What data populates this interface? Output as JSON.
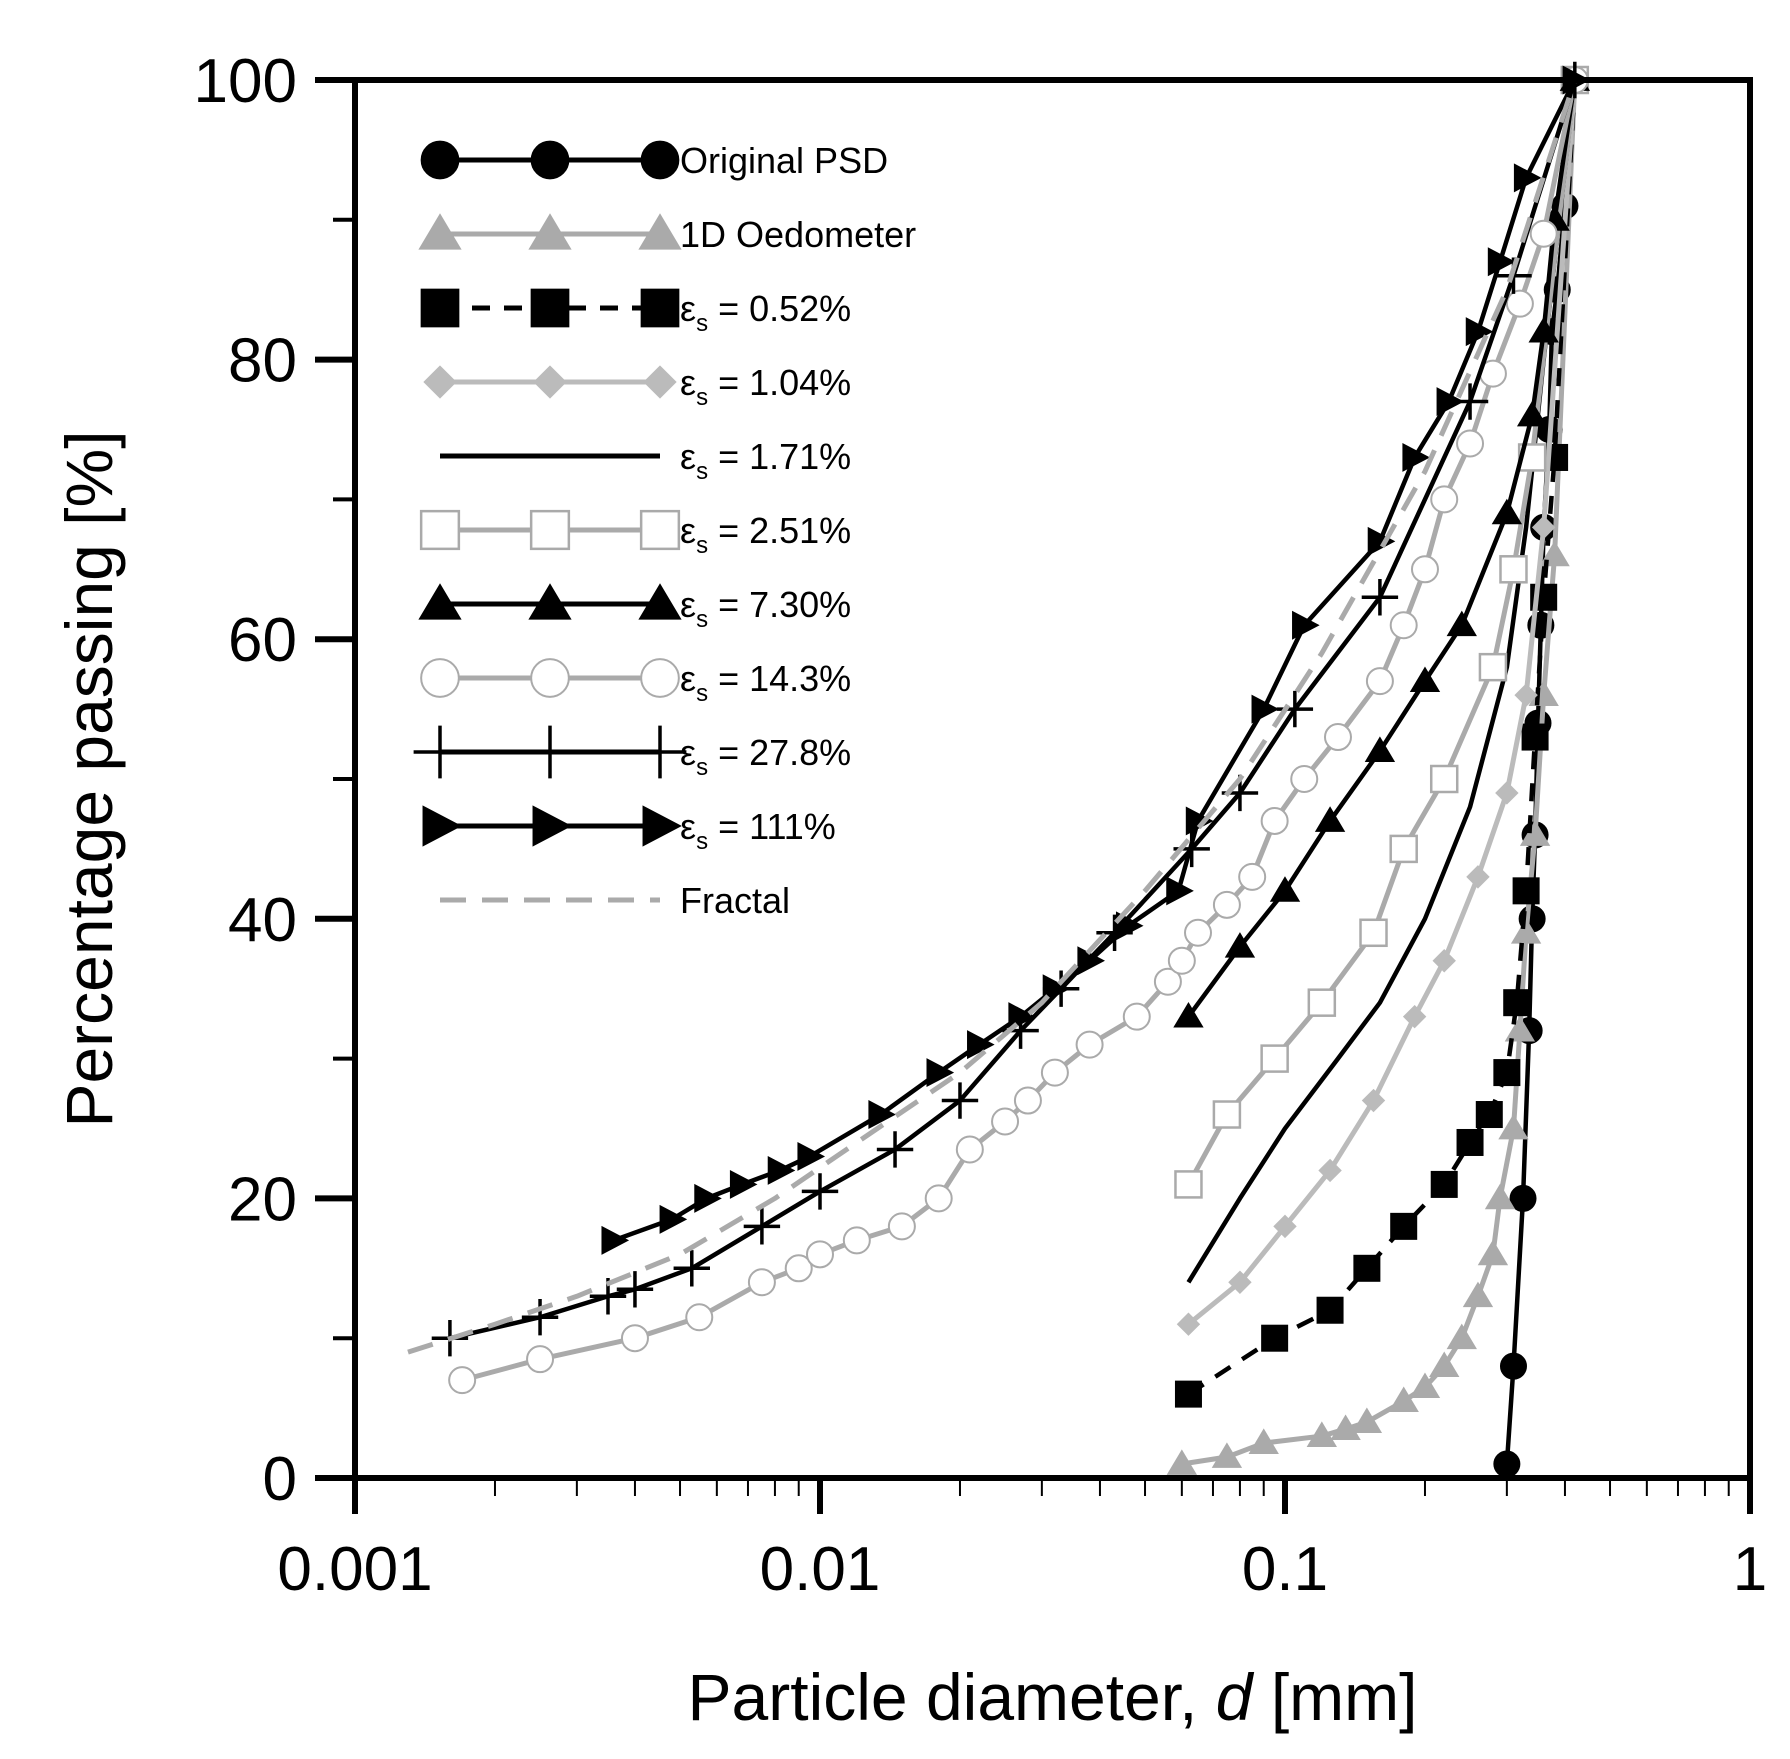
{
  "chart_data": {
    "type": "line",
    "title": "",
    "xlabel": "Particle diameter, ",
    "xlabel_italic": "d",
    "xlabel_suffix": " [mm]",
    "ylabel": "Percentage passing [%]",
    "xscale": "log",
    "xlim": [
      0.001,
      1
    ],
    "ylim": [
      0,
      100
    ],
    "x_ticks": [
      0.001,
      0.01,
      0.1,
      1
    ],
    "x_tick_labels": [
      "0.001",
      "0.01",
      "0.1",
      "1"
    ],
    "y_ticks": [
      0,
      20,
      40,
      60,
      80,
      100
    ],
    "y_tick_labels": [
      "0",
      "20",
      "40",
      "60",
      "80",
      "100"
    ],
    "legend_position": "top-left",
    "series": [
      {
        "name": "Original PSD",
        "legend_label": "Original PSD",
        "strain": "",
        "color": "#000000",
        "marker": "circle",
        "fill": "filled",
        "dash": "solid",
        "x": [
          0.3,
          0.31,
          0.325,
          0.335,
          0.34,
          0.345,
          0.35,
          0.355,
          0.36,
          0.37,
          0.375,
          0.385,
          0.4,
          0.42
        ],
        "y": [
          1,
          8,
          20,
          32,
          40,
          46,
          54,
          61,
          68,
          75,
          82,
          85,
          91,
          100
        ]
      },
      {
        "name": "1D Oedometer",
        "legend_label": "1D Oedometer",
        "strain": "",
        "color": "#aaaaaa",
        "marker": "triangle",
        "fill": "filled",
        "dash": "solid",
        "x": [
          0.06,
          0.075,
          0.09,
          0.12,
          0.135,
          0.15,
          0.18,
          0.2,
          0.22,
          0.24,
          0.26,
          0.28,
          0.29,
          0.31,
          0.32,
          0.33,
          0.345,
          0.36,
          0.38,
          0.42
        ],
        "y": [
          1,
          1.5,
          2.5,
          3,
          3.5,
          4,
          5.5,
          6.5,
          8,
          10,
          13,
          16,
          20,
          25,
          32,
          39,
          46,
          56,
          66,
          100
        ]
      },
      {
        "name": "εs = 0.52%",
        "legend_label": "",
        "strain": "0.52%",
        "color": "#000000",
        "marker": "square",
        "fill": "filled",
        "dash": "dash",
        "x": [
          0.062,
          0.095,
          0.125,
          0.15,
          0.18,
          0.22,
          0.25,
          0.275,
          0.3,
          0.315,
          0.33,
          0.345,
          0.36,
          0.38,
          0.42
        ],
        "y": [
          6,
          10,
          12,
          15,
          18,
          21,
          24,
          26,
          29,
          34,
          42,
          53,
          63,
          73,
          100
        ]
      },
      {
        "name": "εs = 1.04%",
        "legend_label": "",
        "strain": "1.04%",
        "color": "#bbbbbb",
        "marker": "diamond",
        "fill": "filled",
        "dash": "solid",
        "x": [
          0.062,
          0.08,
          0.1,
          0.125,
          0.155,
          0.19,
          0.22,
          0.26,
          0.3,
          0.33,
          0.36,
          0.42
        ],
        "y": [
          11,
          14,
          18,
          22,
          27,
          33,
          37,
          43,
          49,
          56,
          68,
          100
        ]
      },
      {
        "name": "εs = 1.71%",
        "legend_label": "",
        "strain": "1.71%",
        "color": "#000000",
        "marker": "none",
        "fill": "none",
        "dash": "solid",
        "x": [
          0.062,
          0.08,
          0.1,
          0.13,
          0.16,
          0.2,
          0.25,
          0.3,
          0.33,
          0.36,
          0.42
        ],
        "y": [
          14,
          20,
          25,
          30,
          34,
          40,
          48,
          58,
          68,
          80,
          100
        ]
      },
      {
        "name": "εs = 2.51%",
        "legend_label": "",
        "strain": "2.51%",
        "color": "#aaaaaa",
        "marker": "square",
        "fill": "open",
        "dash": "solid",
        "x": [
          0.062,
          0.075,
          0.095,
          0.12,
          0.155,
          0.18,
          0.22,
          0.28,
          0.31,
          0.34,
          0.42
        ],
        "y": [
          21,
          26,
          30,
          34,
          39,
          45,
          50,
          58,
          65,
          73,
          100
        ]
      },
      {
        "name": "εs = 7.30%",
        "legend_label": "",
        "strain": "7.30%",
        "color": "#000000",
        "marker": "triangle",
        "fill": "filled",
        "dash": "solid",
        "x": [
          0.062,
          0.08,
          0.1,
          0.125,
          0.16,
          0.2,
          0.24,
          0.3,
          0.34,
          0.36,
          0.38,
          0.42
        ],
        "y": [
          33,
          38,
          42,
          47,
          52,
          57,
          61,
          69,
          76,
          82,
          90,
          100
        ]
      },
      {
        "name": "εs = 14.3%",
        "legend_label": "",
        "strain": "14.3%",
        "color": "#aaaaaa",
        "marker": "circle",
        "fill": "open",
        "dash": "solid",
        "x": [
          0.0017,
          0.0025,
          0.004,
          0.0055,
          0.0075,
          0.009,
          0.01,
          0.012,
          0.015,
          0.018,
          0.021,
          0.025,
          0.028,
          0.032,
          0.038,
          0.048,
          0.056,
          0.06,
          0.065,
          0.075,
          0.085,
          0.095,
          0.11,
          0.13,
          0.16,
          0.18,
          0.2,
          0.22,
          0.25,
          0.28,
          0.32,
          0.36,
          0.42
        ],
        "y": [
          7,
          8.5,
          10,
          11.5,
          14,
          15,
          16,
          17,
          18,
          20,
          23.5,
          25.5,
          27,
          29,
          31,
          33,
          35.5,
          37,
          39,
          41,
          43,
          47,
          50,
          53,
          57,
          61,
          65,
          70,
          74,
          79,
          84,
          89,
          100
        ]
      },
      {
        "name": "εs = 27.8%",
        "legend_label": "",
        "strain": "27.8%",
        "color": "#000000",
        "marker": "plus",
        "fill": "none",
        "dash": "solid",
        "x": [
          0.0016,
          0.0025,
          0.0035,
          0.004,
          0.0053,
          0.0075,
          0.01,
          0.0145,
          0.02,
          0.027,
          0.033,
          0.043,
          0.063,
          0.08,
          0.105,
          0.16,
          0.25,
          0.31,
          0.42
        ],
        "y": [
          10,
          11.5,
          13,
          13.5,
          15,
          18,
          20.5,
          23.5,
          27,
          32,
          35,
          39,
          45,
          49,
          55,
          63,
          77,
          86,
          100
        ]
      },
      {
        "name": "εs = 111%",
        "legend_label": "",
        "strain": "111%",
        "color": "#000000",
        "marker": "triangle-right",
        "fill": "filled",
        "dash": "solid",
        "x": [
          0.0036,
          0.0048,
          0.0057,
          0.0068,
          0.0082,
          0.0095,
          0.0135,
          0.018,
          0.022,
          0.027,
          0.032,
          0.038,
          0.046,
          0.059,
          0.065,
          0.09,
          0.11,
          0.16,
          0.19,
          0.225,
          0.26,
          0.29,
          0.33,
          0.42
        ],
        "y": [
          17,
          18.5,
          20,
          21,
          22,
          23,
          26,
          29,
          31,
          33,
          35,
          37,
          39.5,
          42,
          47,
          55,
          61,
          67,
          73,
          77,
          82,
          87,
          93,
          100
        ]
      },
      {
        "name": "Fractal",
        "legend_label": "Fractal",
        "strain": "",
        "color": "#aaaaaa",
        "marker": "none",
        "fill": "none",
        "dash": "dash",
        "x": [
          0.0013,
          0.002,
          0.003,
          0.005,
          0.008,
          0.012,
          0.02,
          0.03,
          0.05,
          0.08,
          0.12,
          0.2,
          0.3,
          0.42
        ],
        "y": [
          9,
          11,
          13,
          16,
          20,
          24,
          29,
          34,
          42,
          50,
          59,
          72,
          85,
          100
        ]
      }
    ]
  }
}
